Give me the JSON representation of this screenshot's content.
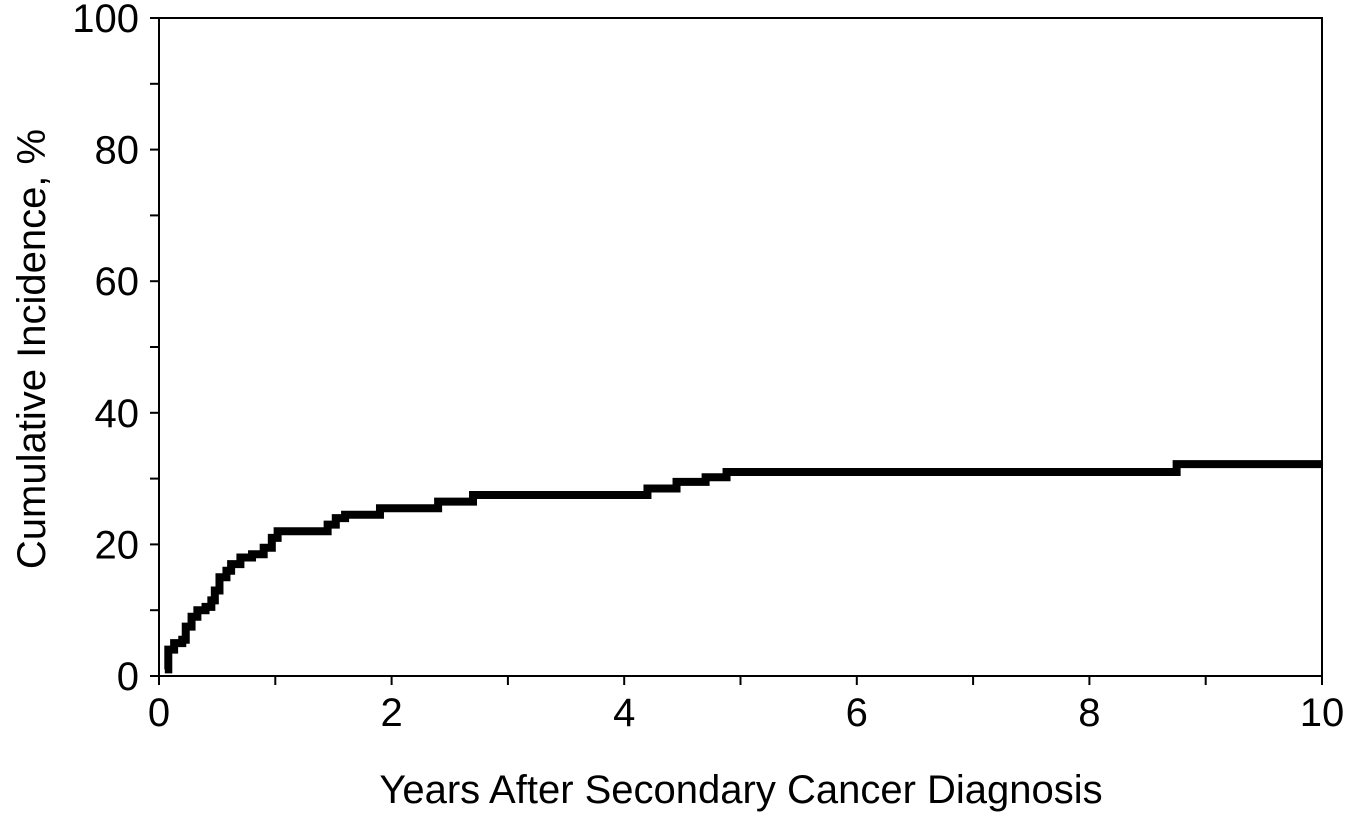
{
  "chart_data": {
    "type": "line",
    "title": "",
    "xlabel": "Years After Secondary Cancer Diagnosis",
    "ylabel": "Cumulative Incidence, %",
    "xlim": [
      0,
      10
    ],
    "ylim": [
      0,
      100
    ],
    "xticks": [
      0,
      2,
      4,
      6,
      8,
      10
    ],
    "yticks": [
      0,
      20,
      40,
      60,
      80,
      100
    ],
    "xtick_labels": [
      "0",
      "2",
      "4",
      "6",
      "8",
      "10"
    ],
    "ytick_labels": [
      "0",
      "20",
      "40",
      "60",
      "80",
      "100"
    ],
    "x_minor_ticks": [
      1,
      3,
      5,
      7,
      9
    ],
    "y_minor_ticks": [
      10,
      30,
      50,
      70,
      90
    ],
    "grid": false,
    "legend": "none",
    "line_style": "step",
    "series": [
      {
        "x": [
          0.05,
          0.08,
          0.13,
          0.2,
          0.23,
          0.28,
          0.33,
          0.4,
          0.45,
          0.48,
          0.52,
          0.58,
          0.62,
          0.7,
          0.8,
          0.9,
          0.97,
          1.02,
          1.45,
          1.52,
          1.6,
          1.9,
          2.4,
          2.7,
          4.2,
          4.45,
          4.7,
          4.88,
          8.75,
          10.0
        ],
        "y": [
          1,
          4,
          5,
          5.5,
          7.5,
          9,
          10,
          10.5,
          11.5,
          13,
          15,
          16,
          17,
          18,
          18.5,
          19.5,
          21,
          22,
          23,
          24,
          24.5,
          25.5,
          26.5,
          27.5,
          28.5,
          29.5,
          30.2,
          31,
          32.2,
          32.2
        ],
        "color": "#000000"
      }
    ],
    "colors": {
      "line": "#000000",
      "axis": "#000000",
      "background": "#ffffff"
    }
  }
}
